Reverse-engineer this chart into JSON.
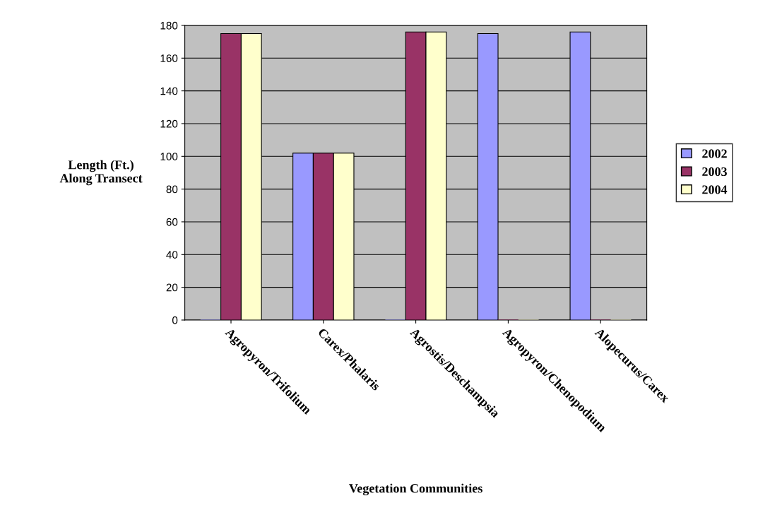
{
  "chart_data": {
    "type": "bar",
    "xlabel": "Vegetation Communities",
    "ylabel": "Length (Ft.)\nAlong Transect",
    "categories": [
      "Agropyron/Trifolium",
      "Carex/Phalaris",
      "Agrostis/Deschampsia",
      "Agropyron/Chenopodium",
      "Alopecurus/Carex"
    ],
    "series": [
      {
        "name": "2002",
        "color": "#9999ff",
        "values": [
          0,
          102,
          0,
          175,
          176
        ]
      },
      {
        "name": "2003",
        "color": "#993366",
        "values": [
          175,
          102,
          176,
          0,
          0
        ]
      },
      {
        "name": "2004",
        "color": "#ffffcc",
        "values": [
          175,
          102,
          176,
          0,
          0
        ]
      }
    ],
    "ylim": [
      0,
      180
    ],
    "yticks": [
      0,
      20,
      40,
      60,
      80,
      100,
      120,
      140,
      160,
      180
    ],
    "grid": "y",
    "legend": "right"
  }
}
